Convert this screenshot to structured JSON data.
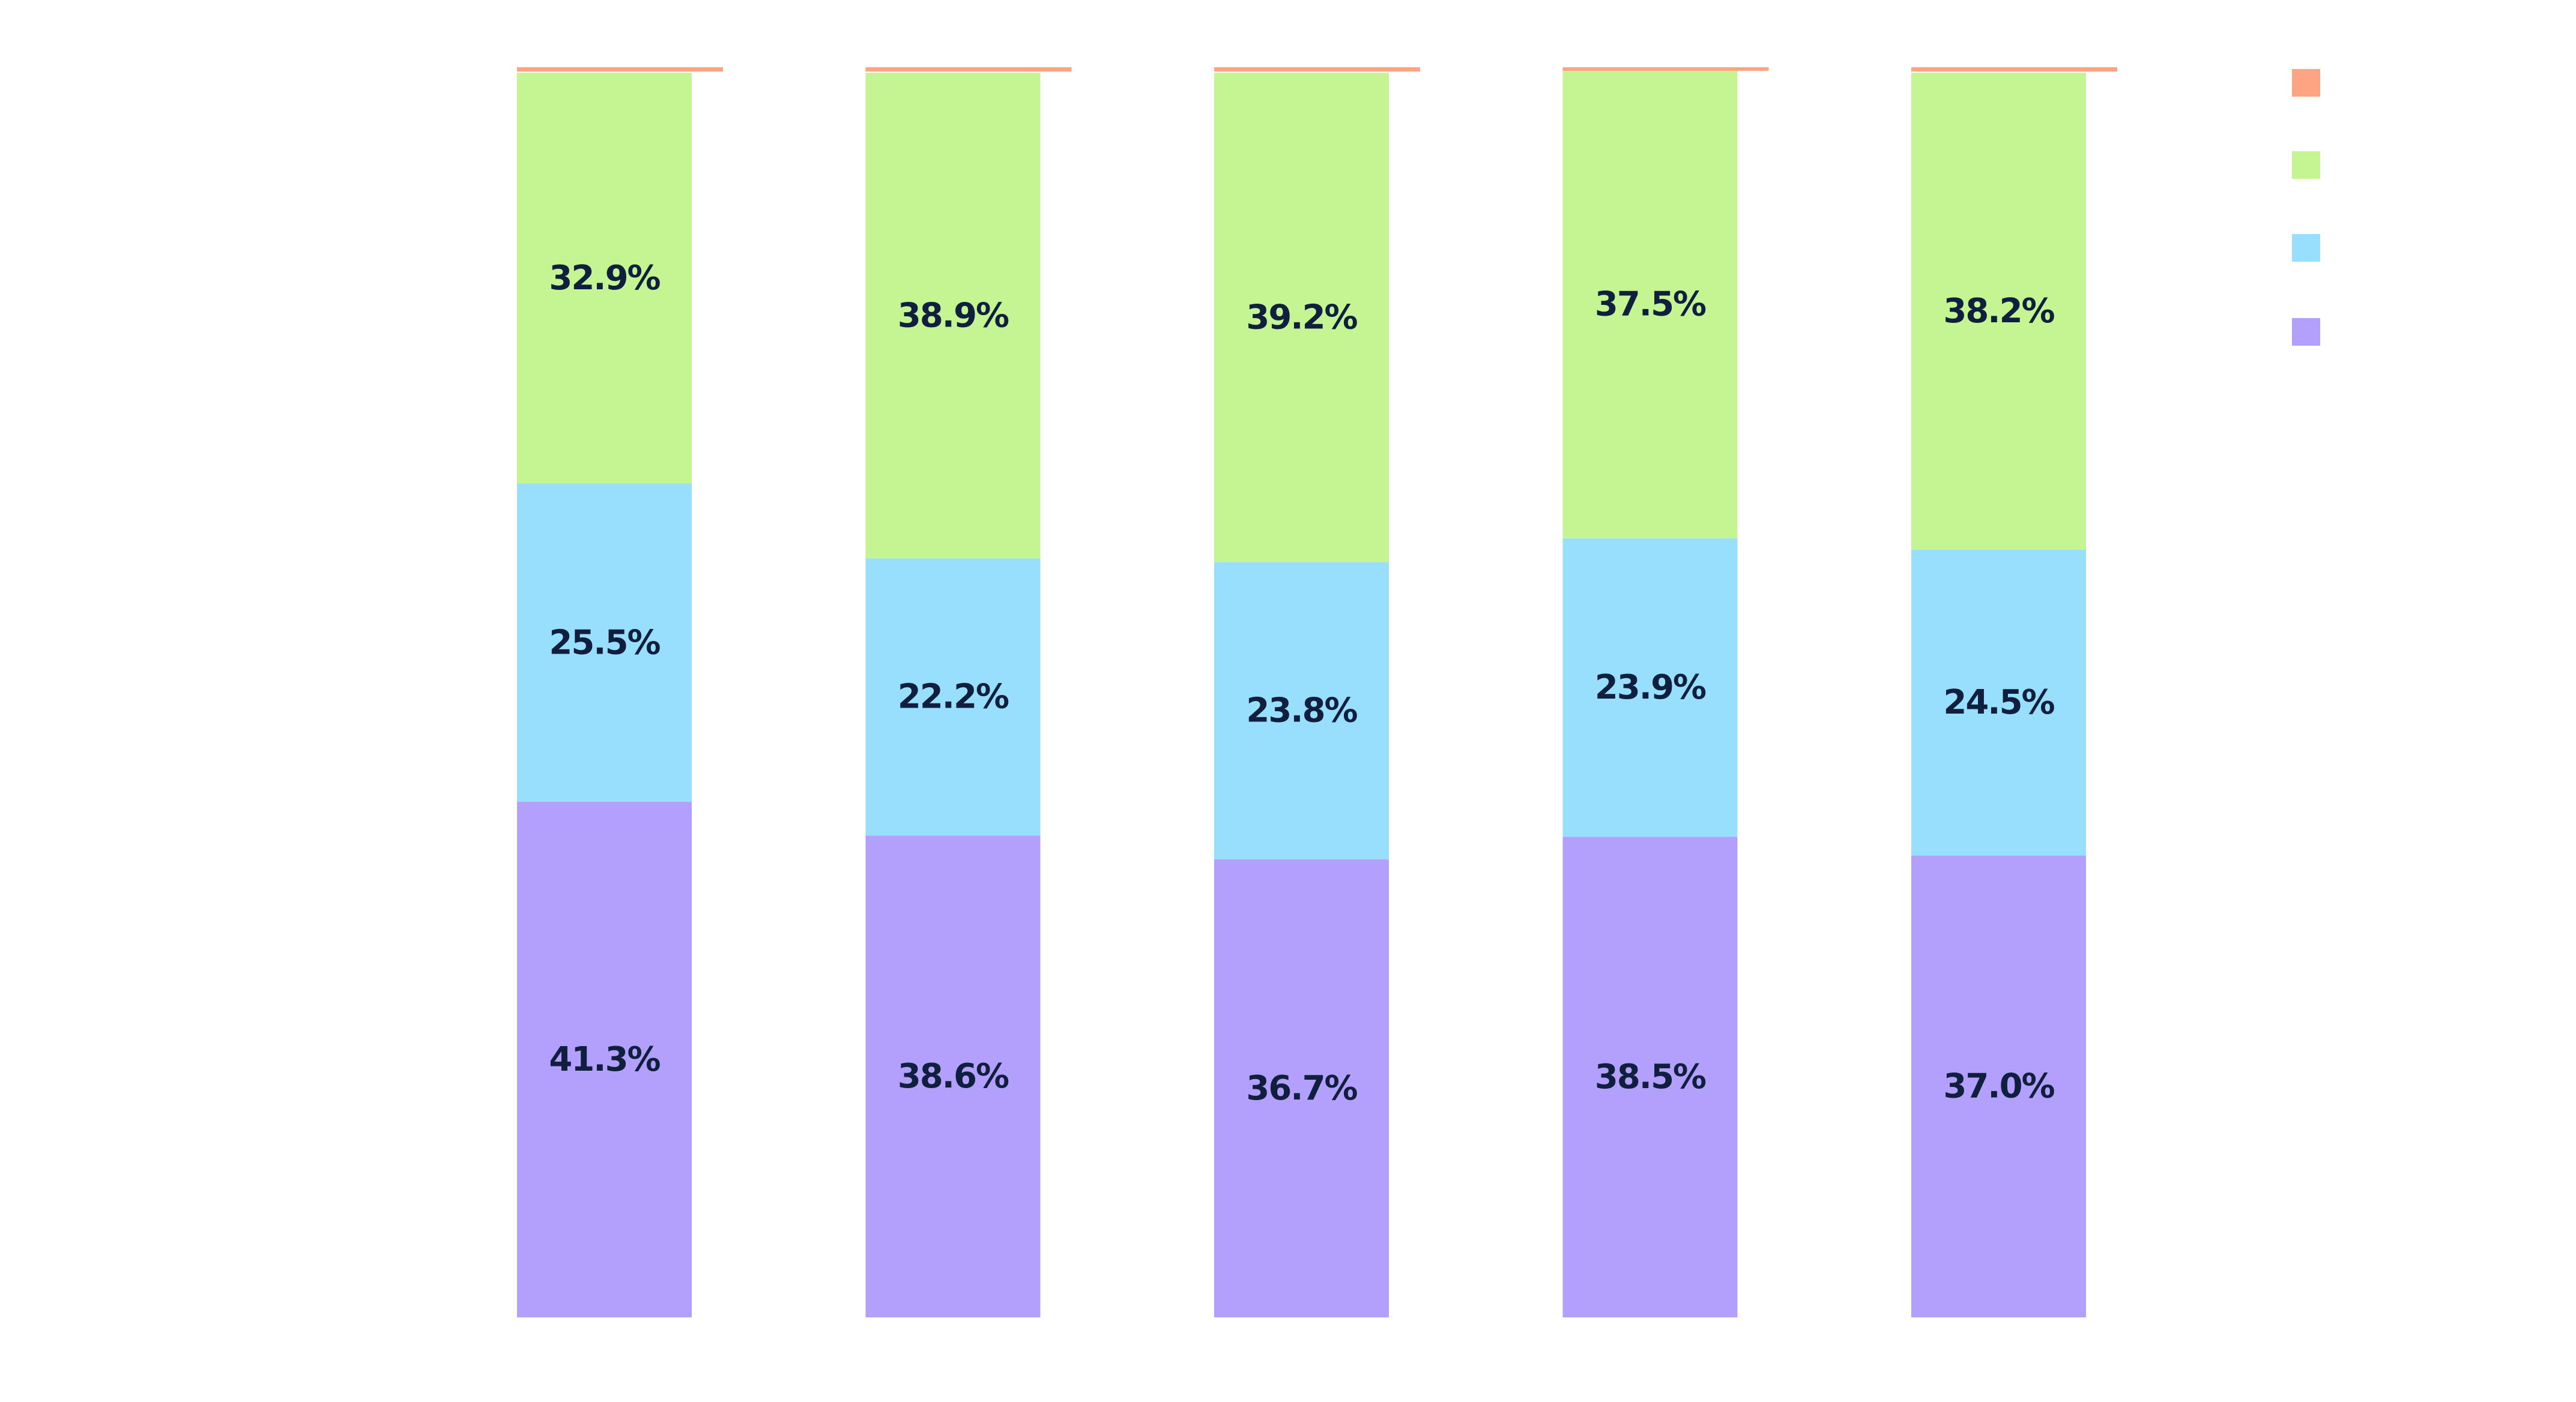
{
  "chart_data": {
    "type": "bar",
    "stacked": true,
    "normalized": true,
    "title": "",
    "xlabel": "",
    "ylabel": "",
    "ylim": [
      0,
      100
    ],
    "grid": false,
    "legend_position": "top-right",
    "categories": [
      "",
      "",
      "",
      "",
      ""
    ],
    "series": [
      {
        "name": "",
        "color": "#b3a0fd",
        "values": [
          41.3,
          38.6,
          36.7,
          38.5,
          37.0
        ],
        "labels": [
          "41.3%",
          "38.6%",
          "36.7%",
          "38.5%",
          "37.0%"
        ]
      },
      {
        "name": "",
        "color": "#98dffd",
        "values": [
          25.5,
          22.2,
          23.8,
          23.9,
          24.5
        ],
        "labels": [
          "25.5%",
          "22.2%",
          "23.8%",
          "23.9%",
          "24.5%"
        ]
      },
      {
        "name": "",
        "color": "#c4f592",
        "values": [
          32.9,
          38.9,
          39.2,
          37.5,
          38.2
        ],
        "labels": [
          "32.9%",
          "38.9%",
          "39.2%",
          "37.5%",
          "38.2%"
        ]
      },
      {
        "name": "",
        "color": "#fea483",
        "values": [
          0.3,
          0.3,
          0.3,
          0.1,
          0.3
        ],
        "labels": [
          "",
          "",
          "",
          "",
          ""
        ]
      }
    ],
    "legend_order": [
      3,
      2,
      1,
      0
    ]
  }
}
